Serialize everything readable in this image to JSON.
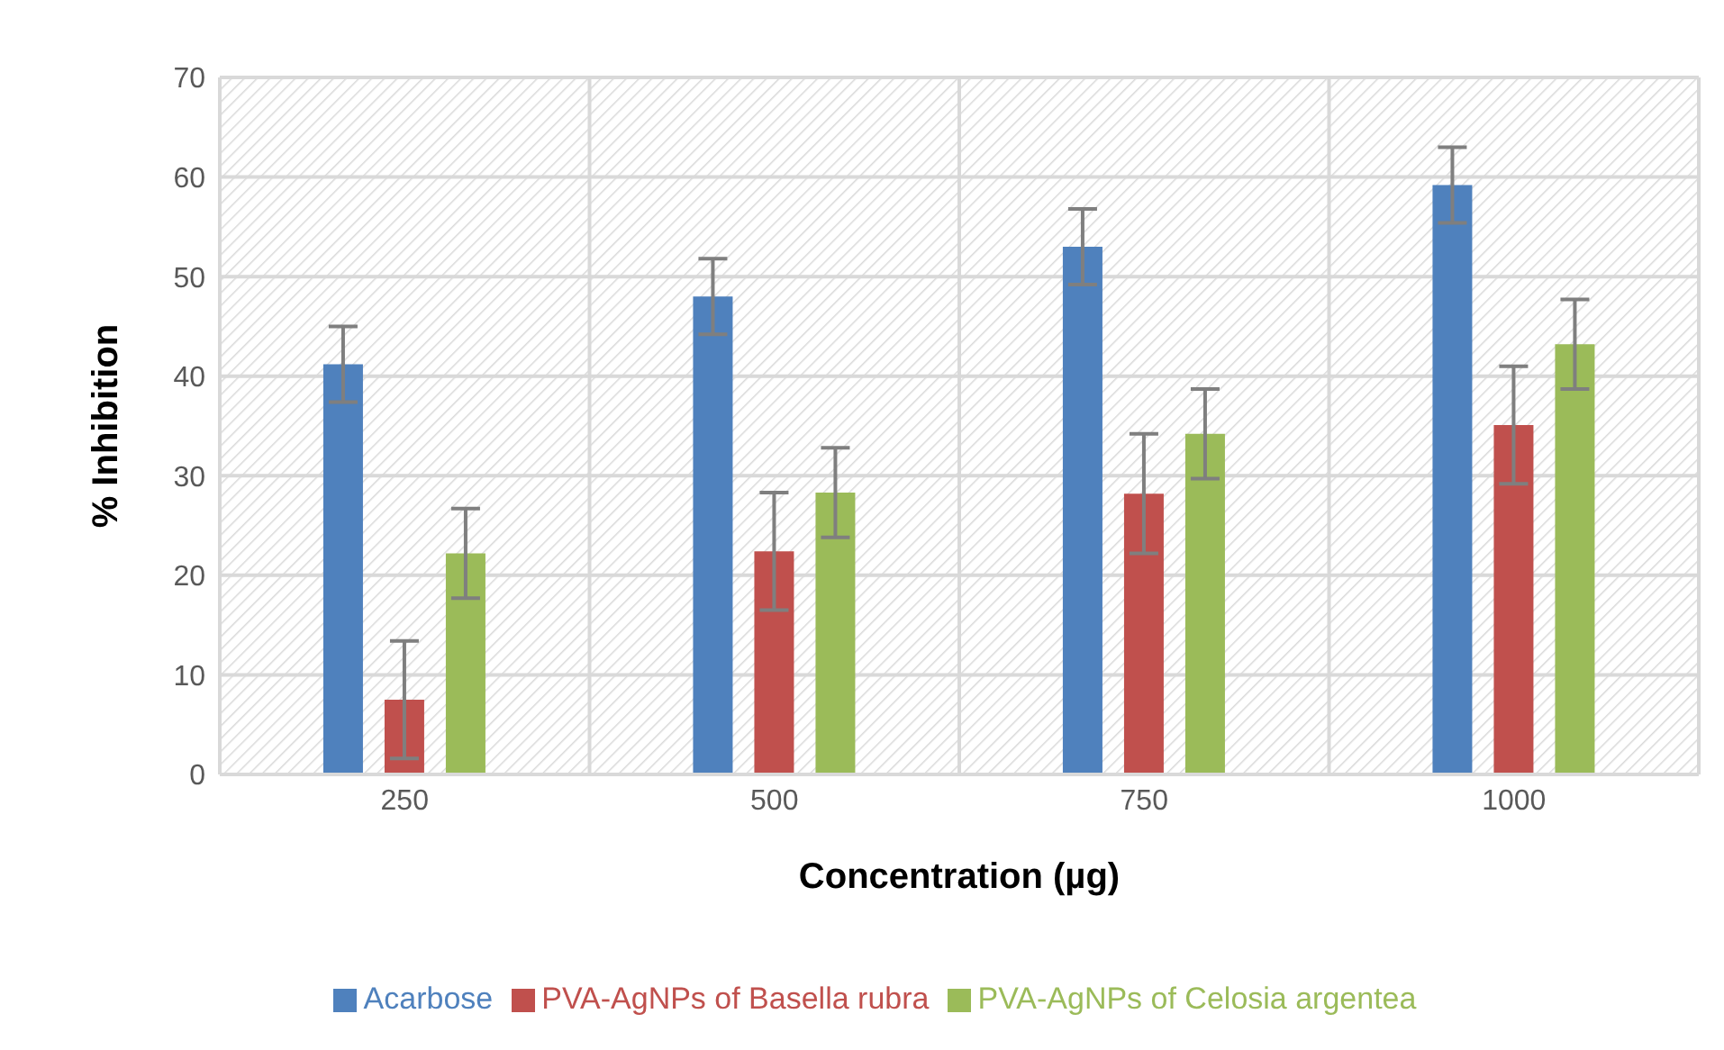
{
  "chart_data": {
    "type": "bar",
    "categories": [
      "250",
      "500",
      "750",
      "1000"
    ],
    "xlabel": "Concentration (µg)",
    "ylabel": "% Inhibition",
    "series": [
      {
        "name": "Acarbose",
        "color": "#4f81bd",
        "values": [
          41.2,
          48,
          53,
          59.2
        ],
        "errors": [
          3.8,
          3.8,
          3.8,
          3.8
        ]
      },
      {
        "name": "PVA-AgNPs of Basella rubra",
        "color": "#c0504d",
        "values": [
          7.5,
          22.4,
          28.2,
          35.1
        ],
        "errors": [
          5.9,
          5.9,
          6,
          5.9
        ]
      },
      {
        "name": "PVA-AgNPs of Celosia argentea",
        "color": "#9bbb59",
        "values": [
          22.2,
          28.3,
          34.2,
          43.2
        ],
        "errors": [
          4.5,
          4.5,
          4.5,
          4.5
        ]
      }
    ],
    "ylim": [
      0,
      70
    ],
    "yticks": [
      0,
      10,
      20,
      30,
      40,
      50,
      60,
      70
    ],
    "grid": true,
    "legend": "bottom"
  }
}
